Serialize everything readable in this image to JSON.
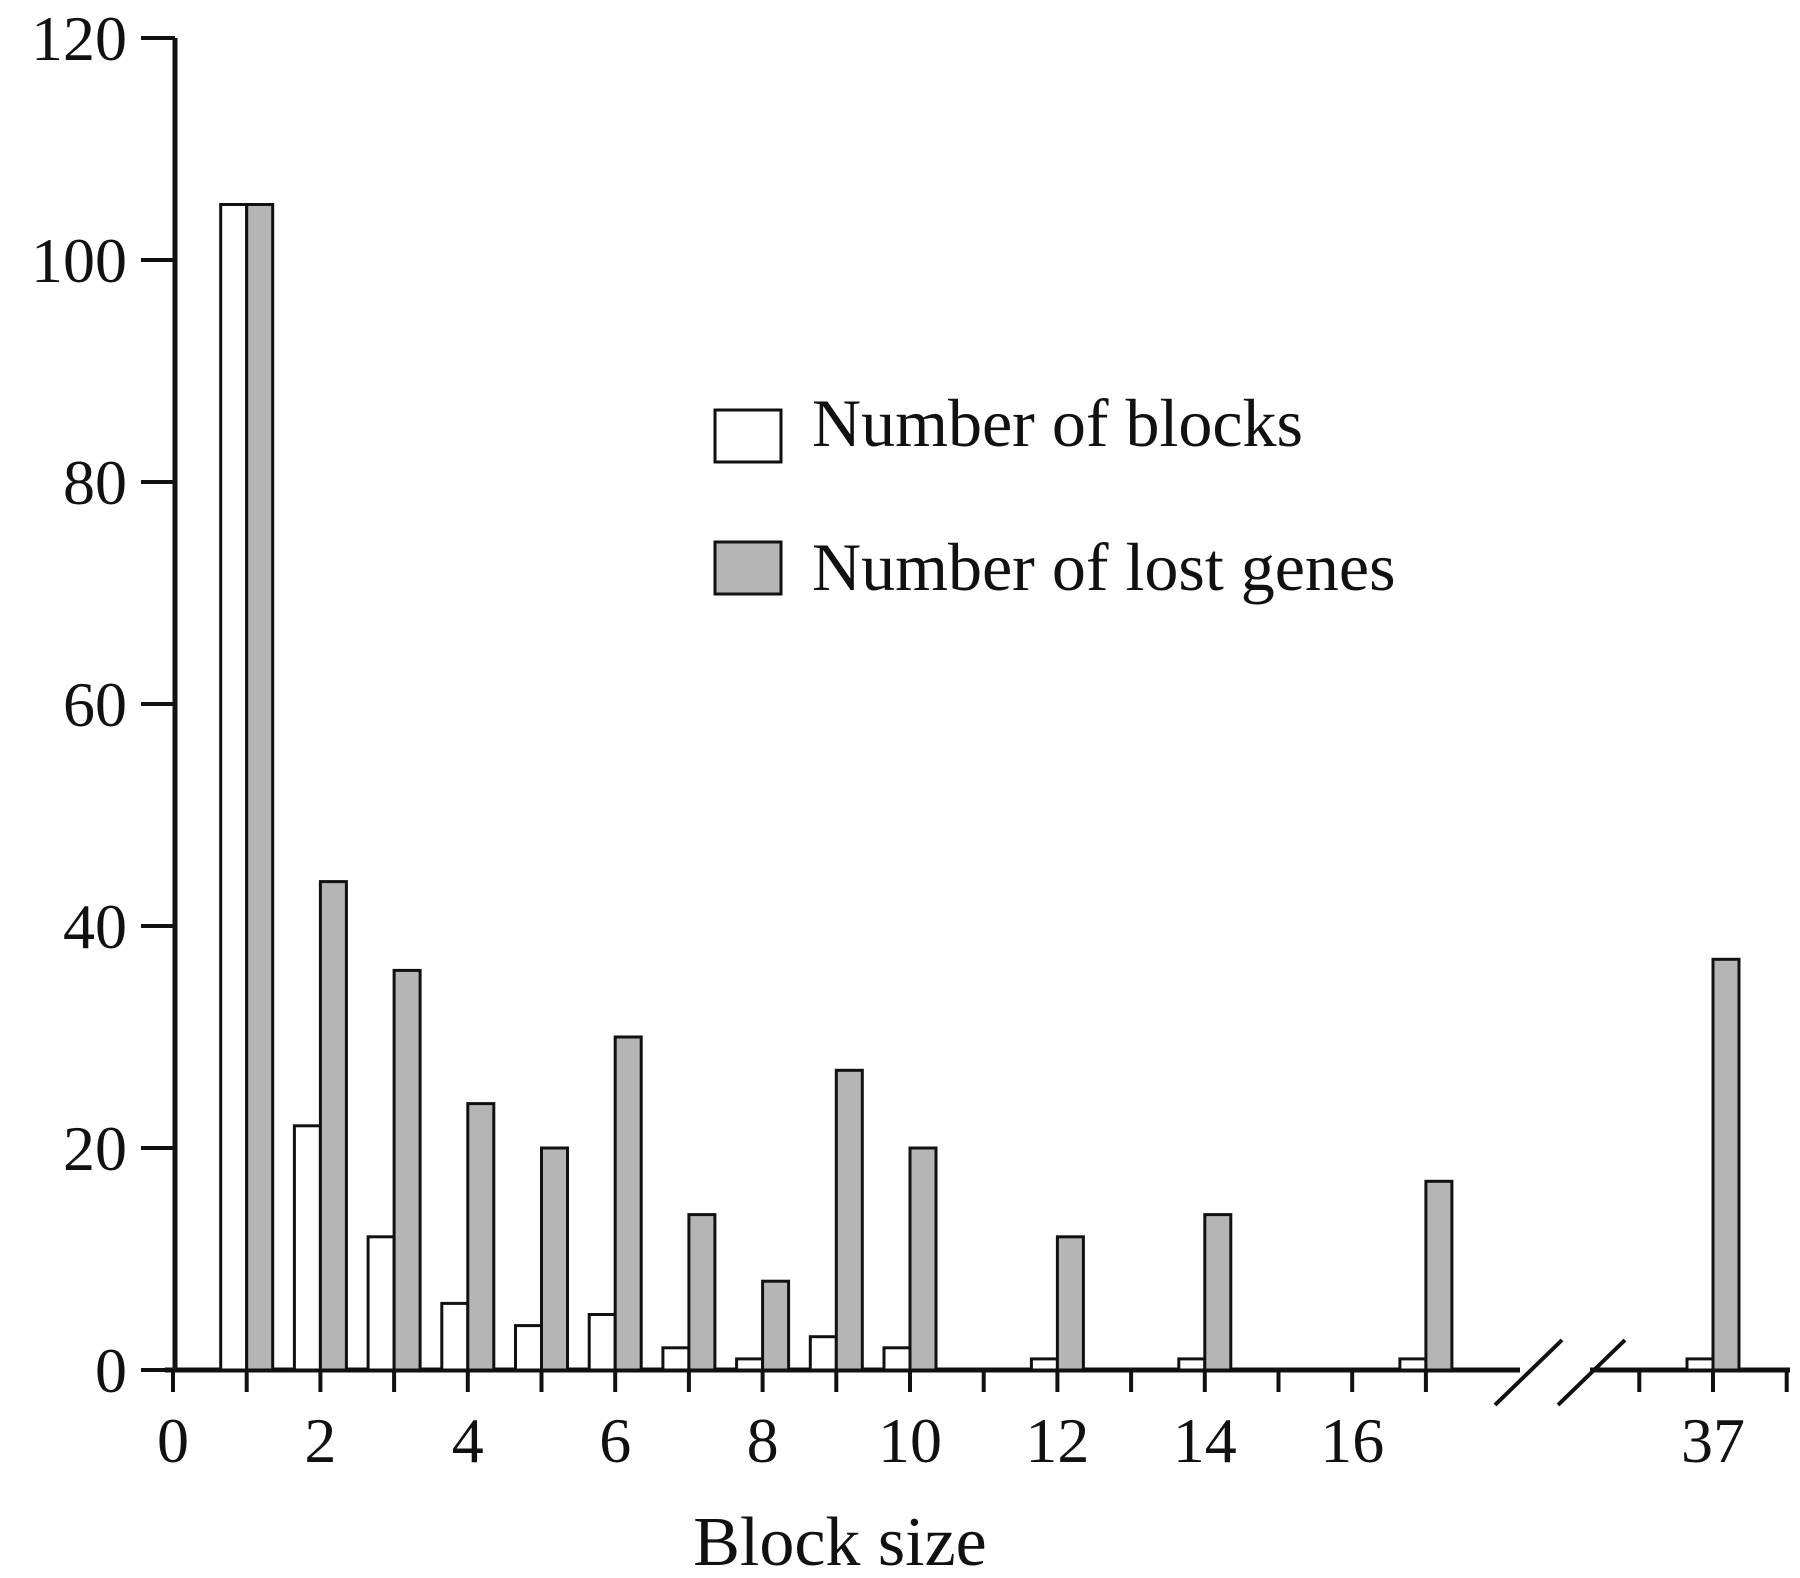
{
  "chart_data": {
    "type": "bar",
    "xlabel": "Block size",
    "ylabel": "",
    "ylim": [
      0,
      120
    ],
    "y_ticks": [
      "0",
      "20",
      "40",
      "60",
      "80",
      "100",
      "120"
    ],
    "x_tick_labels": [
      {
        "label": "0",
        "pos": 0
      },
      {
        "label": "2",
        "pos": 2
      },
      {
        "label": "4",
        "pos": 4
      },
      {
        "label": "6",
        "pos": 6
      },
      {
        "label": "8",
        "pos": 8
      },
      {
        "label": "10",
        "pos": 10
      },
      {
        "label": "12",
        "pos": 12
      },
      {
        "label": "14",
        "pos": 14
      },
      {
        "label": "16",
        "pos": 16
      },
      {
        "label": "37",
        "pos": 37
      }
    ],
    "axis_break": "between 17 and 37",
    "categories": [
      "1",
      "2",
      "3",
      "4",
      "5",
      "6",
      "7",
      "8",
      "9",
      "10",
      "12",
      "14",
      "17",
      "37"
    ],
    "series": [
      {
        "name": "Number of blocks",
        "color": "#ffffff",
        "values": [
          105,
          22,
          12,
          6,
          4,
          5,
          2,
          1,
          3,
          2,
          1,
          1,
          1,
          1
        ]
      },
      {
        "name": "Number of lost genes",
        "color": "#b5b5b5",
        "values": [
          105,
          44,
          36,
          24,
          20,
          30,
          14,
          8,
          27,
          20,
          12,
          14,
          17,
          37
        ]
      }
    ],
    "legend_position": "upper right",
    "grid": false
  },
  "colors": {
    "axis": "#111111",
    "bar_outline": "#111111",
    "white_bar": "#ffffff",
    "gray_bar": "#b5b5b5"
  }
}
